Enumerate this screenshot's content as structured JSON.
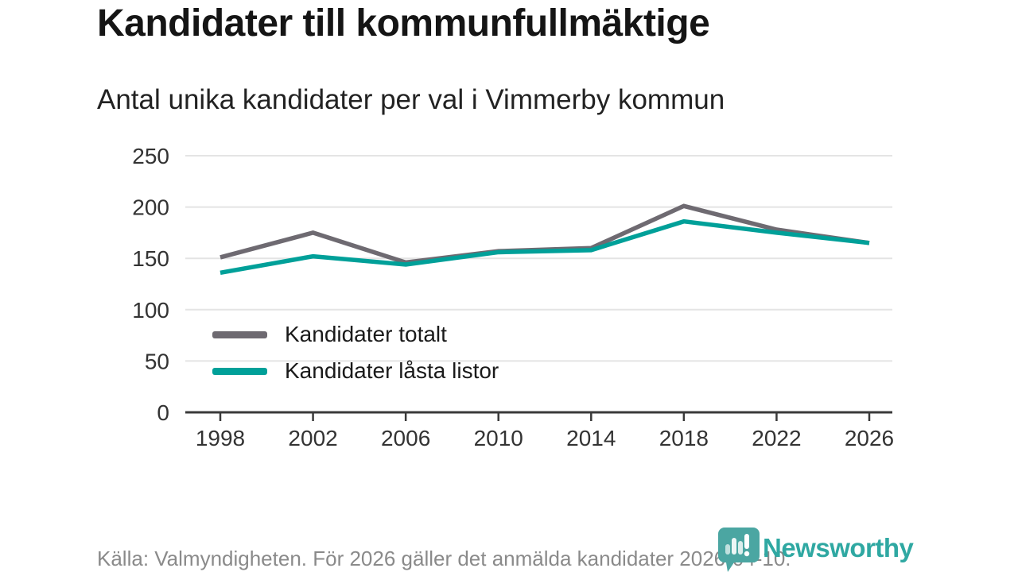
{
  "header": {
    "title": "Kandidater till kommunfullmäktige",
    "subtitle": "Antal unika kandidater per val i Vimmerby kommun"
  },
  "chart_data": {
    "type": "line",
    "x": [
      1998,
      2002,
      2006,
      2010,
      2014,
      2018,
      2022,
      2026
    ],
    "series": [
      {
        "name": "Kandidater totalt",
        "color": "#6e6a71",
        "values": [
          151,
          175,
          146,
          157,
          160,
          201,
          178,
          165
        ]
      },
      {
        "name": "Kandidater låsta listor",
        "color": "#00a099",
        "values": [
          136,
          152,
          144,
          156,
          158,
          186,
          175,
          165
        ]
      }
    ],
    "ylim": [
      0,
      250
    ],
    "yticks": [
      0,
      50,
      100,
      150,
      200,
      250
    ],
    "grid": "horizontal",
    "legend_position": "inside-left",
    "colors": {
      "gridline": "#e4e4e4",
      "axis": "#3a3a3a",
      "tick_label": "#333333"
    }
  },
  "footer": {
    "source": "Källa: Valmyndigheten. För 2026 gäller det anmälda kandidater 2026-04-10."
  },
  "brand": {
    "name": "Newsworthy",
    "word_color": "#2fa8a2",
    "logo_color": "#4ba6a2"
  }
}
